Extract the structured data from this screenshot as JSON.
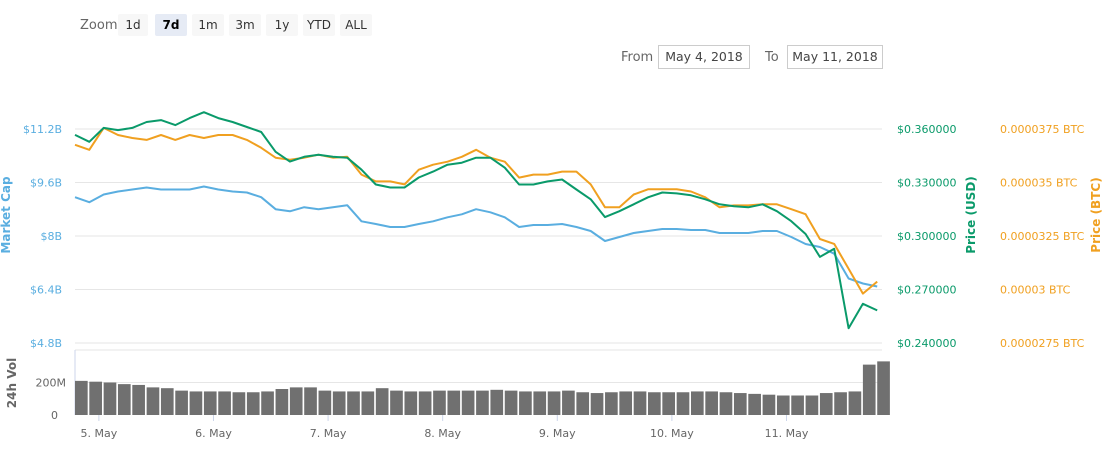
{
  "range_selector": {
    "zoom_label": "Zoom",
    "buttons": [
      "1d",
      "7d",
      "1m",
      "3m",
      "1y",
      "YTD",
      "ALL"
    ],
    "selected": "7d"
  },
  "date_range": {
    "from_label": "From",
    "from_value": "May 4, 2018",
    "to_label": "To",
    "to_value": "May 11, 2018"
  },
  "colors": {
    "market_cap": "#5aaee0",
    "price_usd": "#0a9a6a",
    "price_btc": "#f0a020",
    "volume": "#707070"
  },
  "chart_data": {
    "type": "line",
    "x_tick_labels": [
      "5. May",
      "6. May",
      "7. May",
      "8. May",
      "9. May",
      "10. May",
      "11. May"
    ],
    "xlim": [
      "2018-05-04 19:00",
      "2018-05-11 20:00"
    ],
    "axes": {
      "market_cap": {
        "title": "Market Cap",
        "ticks": [
          "$4.8B",
          "$6.4B",
          "$8B",
          "$9.6B",
          "$11.2B"
        ],
        "ylim": [
          4.8,
          11.2
        ],
        "unit": "B USD"
      },
      "price_usd": {
        "title": "Price (USD)",
        "ticks": [
          "$0.240000",
          "$0.270000",
          "$0.300000",
          "$0.330000",
          "$0.360000"
        ],
        "ylim": [
          0.24,
          0.36
        ]
      },
      "price_btc": {
        "title": "Price (BTC)",
        "ticks": [
          "0.0000275 BTC",
          "0.00003 BTC",
          "0.0000325 BTC",
          "0.000035 BTC",
          "0.0000375 BTC"
        ],
        "ylim": [
          2.75e-05,
          3.75e-05
        ]
      },
      "volume": {
        "title": "24h Vol",
        "ticks": [
          "0",
          "200M"
        ],
        "ylim": [
          0,
          400
        ]
      }
    },
    "grid": true,
    "times": [
      "2018-05-04 19:00",
      "2018-05-04 22:00",
      "2018-05-05 01:00",
      "2018-05-05 04:00",
      "2018-05-05 07:00",
      "2018-05-05 10:00",
      "2018-05-05 13:00",
      "2018-05-05 16:00",
      "2018-05-05 19:00",
      "2018-05-05 22:00",
      "2018-05-06 01:00",
      "2018-05-06 04:00",
      "2018-05-06 07:00",
      "2018-05-06 10:00",
      "2018-05-06 13:00",
      "2018-05-06 16:00",
      "2018-05-06 19:00",
      "2018-05-06 22:00",
      "2018-05-07 01:00",
      "2018-05-07 04:00",
      "2018-05-07 07:00",
      "2018-05-07 10:00",
      "2018-05-07 13:00",
      "2018-05-07 16:00",
      "2018-05-07 19:00",
      "2018-05-07 22:00",
      "2018-05-08 01:00",
      "2018-05-08 04:00",
      "2018-05-08 07:00",
      "2018-05-08 10:00",
      "2018-05-08 13:00",
      "2018-05-08 16:00",
      "2018-05-08 19:00",
      "2018-05-08 22:00",
      "2018-05-09 01:00",
      "2018-05-09 04:00",
      "2018-05-09 07:00",
      "2018-05-09 10:00",
      "2018-05-09 13:00",
      "2018-05-09 16:00",
      "2018-05-09 19:00",
      "2018-05-09 22:00",
      "2018-05-10 01:00",
      "2018-05-10 04:00",
      "2018-05-10 07:00",
      "2018-05-10 10:00",
      "2018-05-10 13:00",
      "2018-05-10 16:00",
      "2018-05-10 19:00",
      "2018-05-10 22:00",
      "2018-05-11 01:00",
      "2018-05-11 04:00",
      "2018-05-11 07:00",
      "2018-05-11 10:00",
      "2018-05-11 13:00",
      "2018-05-11 16:00",
      "2018-05-11 19:00"
    ],
    "series": [
      {
        "name": "Market Cap",
        "axis": "market_cap",
        "values": [
          9.16,
          9.01,
          9.24,
          9.33,
          9.39,
          9.45,
          9.39,
          9.39,
          9.39,
          9.48,
          9.39,
          9.33,
          9.3,
          9.16,
          8.8,
          8.74,
          8.86,
          8.8,
          8.86,
          8.92,
          8.44,
          8.36,
          8.27,
          8.27,
          8.36,
          8.44,
          8.56,
          8.65,
          8.8,
          8.71,
          8.56,
          8.27,
          8.33,
          8.33,
          8.36,
          8.27,
          8.15,
          7.85,
          7.97,
          8.09,
          8.15,
          8.21,
          8.21,
          8.18,
          8.18,
          8.09,
          8.09,
          8.09,
          8.15,
          8.15,
          7.97,
          7.76,
          7.67,
          7.47,
          6.73,
          6.58,
          6.49
        ]
      },
      {
        "name": "Price (USD)",
        "axis": "price_usd",
        "values": [
          0.3567,
          0.3528,
          0.3606,
          0.3594,
          0.3606,
          0.3639,
          0.365,
          0.3622,
          0.3661,
          0.3694,
          0.3661,
          0.3639,
          0.3611,
          0.3583,
          0.3472,
          0.3417,
          0.3444,
          0.3456,
          0.3444,
          0.3439,
          0.3372,
          0.3289,
          0.3272,
          0.3272,
          0.3328,
          0.3361,
          0.34,
          0.3411,
          0.3439,
          0.3439,
          0.3383,
          0.3289,
          0.3289,
          0.3306,
          0.3317,
          0.3261,
          0.3206,
          0.3106,
          0.3139,
          0.3178,
          0.3217,
          0.3244,
          0.3239,
          0.3228,
          0.3206,
          0.3178,
          0.3167,
          0.3161,
          0.3178,
          0.3139,
          0.3083,
          0.3011,
          0.2883,
          0.2928,
          0.2483,
          0.262,
          0.2583
        ]
      },
      {
        "name": "Price (BTC)",
        "axis": "price_btc",
        "values": [
          3.676e-05,
          3.653e-05,
          3.755e-05,
          3.722e-05,
          3.708e-05,
          3.699e-05,
          3.722e-05,
          3.699e-05,
          3.722e-05,
          3.708e-05,
          3.722e-05,
          3.722e-05,
          3.699e-05,
          3.662e-05,
          3.616e-05,
          3.606e-05,
          3.616e-05,
          3.63e-05,
          3.616e-05,
          3.62e-05,
          3.537e-05,
          3.505e-05,
          3.505e-05,
          3.491e-05,
          3.56e-05,
          3.583e-05,
          3.597e-05,
          3.62e-05,
          3.653e-05,
          3.616e-05,
          3.597e-05,
          3.523e-05,
          3.537e-05,
          3.537e-05,
          3.551e-05,
          3.551e-05,
          3.491e-05,
          3.384e-05,
          3.384e-05,
          3.444e-05,
          3.468e-05,
          3.468e-05,
          3.468e-05,
          3.458e-05,
          3.431e-05,
          3.384e-05,
          3.393e-05,
          3.393e-05,
          3.398e-05,
          3.398e-05,
          3.375e-05,
          3.352e-05,
          3.236e-05,
          3.213e-05,
          3.097e-05,
          2.981e-05,
          3.037e-05
        ]
      },
      {
        "name": "24h Vol",
        "axis": "volume",
        "type": "bar",
        "values": [
          210,
          205,
          200,
          190,
          185,
          170,
          165,
          150,
          145,
          145,
          145,
          140,
          140,
          145,
          160,
          170,
          170,
          150,
          145,
          145,
          145,
          165,
          150,
          145,
          145,
          150,
          150,
          150,
          150,
          155,
          150,
          145,
          145,
          145,
          150,
          140,
          135,
          140,
          145,
          145,
          140,
          140,
          140,
          145,
          145,
          140,
          135,
          130,
          125,
          120,
          120,
          120,
          135,
          140,
          145,
          310,
          330
        ]
      }
    ]
  }
}
